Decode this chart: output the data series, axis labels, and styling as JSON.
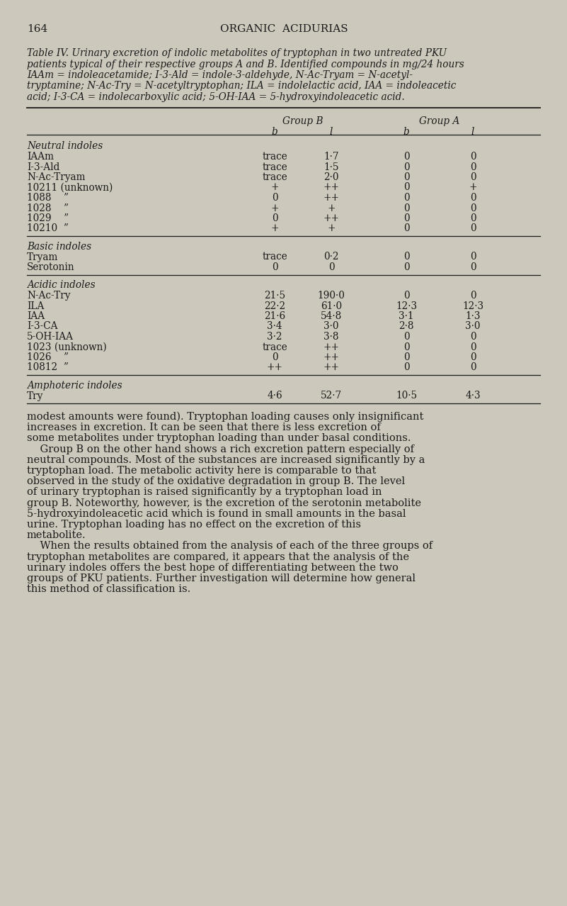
{
  "background_color": "#ccc9bc",
  "page_number": "164",
  "page_header": "ORGANIC  ACIDURIAS",
  "caption_lines": [
    "Table IV. Urinary excretion of indolic metabolites of tryptophan in two untreated PKU",
    "patients typical of their respective groups A and B. Identified compounds in mg/24 hours",
    "IAAm = indoleacetamide; I-3-Ald = indole-3-aldehyde, N-Ac-Tryam = N-acetyl-",
    "tryptamine; N-Ac-Try = N-acetyltryptophan; ILA = indolelactic acid, IAA = indoleacetic",
    "acid; I-3-CA = indolecarboxylic acid; 5-OH-IAA = 5-hydroxyindoleacetic acid."
  ],
  "sections": [
    {
      "section_title": "Neutral indoles",
      "rows": [
        [
          "IAAm",
          "trace",
          "1·7",
          "0",
          "0"
        ],
        [
          "I-3-Ald",
          "trace",
          "1·5",
          "0",
          "0"
        ],
        [
          "N-Ac-Tryam",
          "trace",
          "2·0",
          "0",
          "0"
        ],
        [
          "10211 (unknown)",
          "+",
          "++",
          "0",
          "+"
        ],
        [
          "1088    ”",
          "0",
          "++",
          "0",
          "0"
        ],
        [
          "1028    ”",
          "+",
          "+",
          "0",
          "0"
        ],
        [
          "1029    ”",
          "0",
          "++",
          "0",
          "0"
        ],
        [
          "10210  ”",
          "+",
          "+",
          "0",
          "0"
        ]
      ]
    },
    {
      "section_title": "Basic indoles",
      "rows": [
        [
          "Tryam",
          "trace",
          "0·2",
          "0",
          "0"
        ],
        [
          "Serotonin",
          "0",
          "0",
          "0",
          "0"
        ]
      ]
    },
    {
      "section_title": "Acidic indoles",
      "rows": [
        [
          "N-Ac-Try",
          "21·5",
          "190·0",
          "0",
          "0"
        ],
        [
          "ILA",
          "22·2",
          "61·0",
          "12·3",
          "12·3"
        ],
        [
          "IAA",
          "21·6",
          "54·8",
          "3·1",
          "1·3"
        ],
        [
          "I-3-CA",
          "3·4",
          "3·0",
          "2·8",
          "3·0"
        ],
        [
          "5-OH-IAA",
          "3·2",
          "3·8",
          "0",
          "0"
        ],
        [
          "1023 (unknown)",
          "trace",
          "++",
          "0",
          "0"
        ],
        [
          "1026    ”",
          "0",
          "++",
          "0",
          "0"
        ],
        [
          "10812  ”",
          "++",
          "++",
          "0",
          "0"
        ]
      ]
    },
    {
      "section_title": "Amphoteric indoles",
      "rows": [
        [
          "Try",
          "4·6",
          "52·7",
          "10·5",
          "4·3"
        ]
      ]
    }
  ],
  "body_paragraphs": [
    "modest amounts were found). Tryptophan loading causes only insignificant increases in excretion. It can be seen that there is less excretion of some metabolites under tryptophan loading than under basal conditions.",
    "Group B on the other hand shows a rich excretion pattern especially of neutral compounds. Most of the substances are increased significantly by a tryptophan load. The metabolic activity here is comparable to that observed in the study of the oxidative degradation in group B. The level of urinary tryptophan is raised significantly by a tryptophan load in group B. Noteworthy, however, is the excretion of the serotonin metabolite 5-hydroxyindoleacetic acid which is found in small amounts in the basal urine. Tryptophan loading has no effect on the excretion of this metabolite.",
    "When the results obtained from the analysis of each of the three groups of tryptophan metabolites are compared, it appears that the analysis of the urinary indoles offers the best hope of differentiating between the two groups of PKU patients. Further investigation will determine how general this method of classification is."
  ]
}
